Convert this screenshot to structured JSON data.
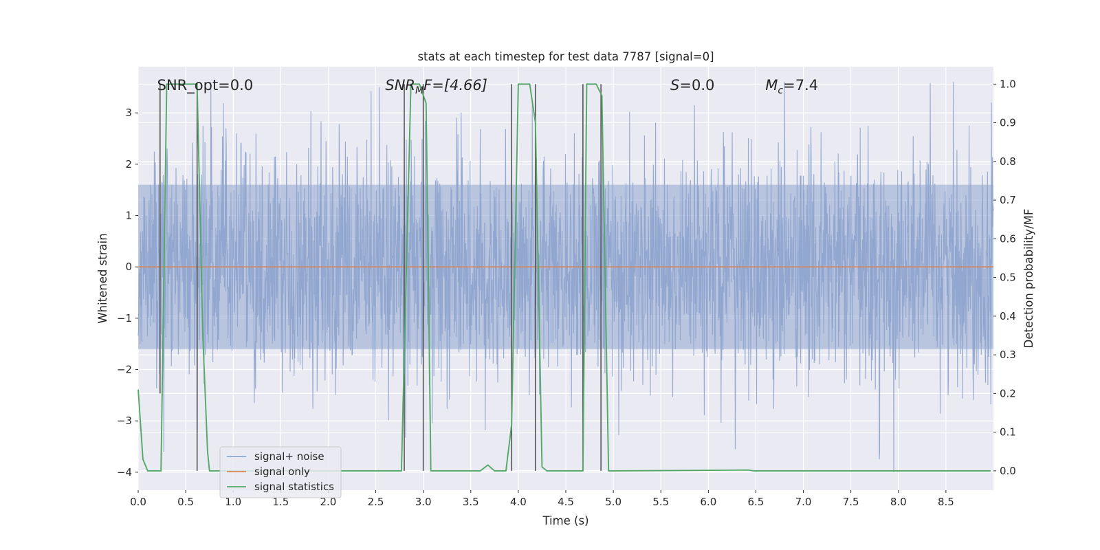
{
  "chart_data": {
    "type": "line",
    "title": "stats at each timestep for test data 7787 [signal=0]",
    "xlabel": "Time (s)",
    "ylabel": "Whitened strain",
    "ylabel_right": "Detection probability/MF",
    "xlim": [
      0,
      9
    ],
    "ylim": [
      -4.35,
      3.9
    ],
    "ylim_right": [
      -0.05,
      1.045
    ],
    "grid": true,
    "legend_position": "lower-left",
    "x_ticks": [
      "0.0",
      "0.5",
      "1.0",
      "1.5",
      "2.0",
      "2.5",
      "3.0",
      "3.5",
      "4.0",
      "4.5",
      "5.0",
      "5.5",
      "6.0",
      "6.5",
      "7.0",
      "7.5",
      "8.0",
      "8.5"
    ],
    "y_ticks": [
      "3",
      "2",
      "1",
      "0",
      "−1",
      "−2",
      "−3",
      "−4"
    ],
    "y_ticks_right": [
      "1.0",
      "0.9",
      "0.8",
      "0.7",
      "0.6",
      "0.5",
      "0.4",
      "0.3",
      "0.2",
      "0.1",
      "0.0"
    ],
    "annotations": {
      "snr_opt": {
        "prefix": "SNR_opt=",
        "value": "0.0",
        "x": 0.2,
        "y": 3.55
      },
      "snr_mf": {
        "main": "SNR",
        "sub": "M",
        "rest": "F=[4.66]",
        "x": 2.6,
        "y": 3.55
      },
      "s": {
        "main": "S",
        "rest": "=0.0",
        "x": 5.6,
        "y": 3.55
      },
      "mc": {
        "main": "M",
        "sub": "c",
        "rest": "=7.4",
        "x": 6.6,
        "y": 3.55
      }
    },
    "series": [
      {
        "name": "signal+ noise",
        "color": "#8fa5cf",
        "axis": "left",
        "description": "whitened strain noise band",
        "band_lower": -1.6,
        "band_upper": 1.6,
        "max_abs": 3.6,
        "events": [
          {
            "x": 7.8,
            "y": -3.75
          },
          {
            "x": 7.95,
            "y": -4.0
          },
          {
            "x": 0.27,
            "y": -3.6
          },
          {
            "x": 8.98,
            "y": 3.2
          },
          {
            "x": 2.54,
            "y": 3.5
          }
        ]
      },
      {
        "name": "signal only",
        "color": "#dd8452",
        "axis": "left",
        "x": [
          0,
          9
        ],
        "y": [
          0,
          0
        ]
      },
      {
        "name": "signal statistics",
        "color": "#55a868",
        "axis": "right",
        "x": [
          0,
          0.05,
          0.1,
          0.24,
          0.3,
          0.62,
          0.68,
          0.73,
          0.75,
          2.77,
          2.87,
          2.96,
          3.03,
          3.08,
          3.6,
          3.68,
          3.75,
          3.87,
          3.93,
          4.0,
          4.12,
          4.18,
          4.25,
          4.3,
          4.68,
          4.72,
          4.78,
          4.82,
          4.88,
          4.95,
          5.02,
          6.42,
          6.48,
          8.97
        ],
        "y": [
          0.21,
          0.03,
          0.0,
          0.0,
          1.0,
          1.0,
          0.35,
          0.05,
          0.0,
          0.0,
          1.0,
          1.0,
          0.95,
          0.0,
          0.0,
          0.015,
          0.0,
          0.0,
          0.12,
          1.0,
          1.0,
          0.9,
          0.01,
          0.0,
          0.0,
          1.0,
          1.0,
          1.0,
          0.97,
          0.0,
          0.0,
          0.002,
          0.0,
          0.0
        ]
      }
    ],
    "vertical_lines": [
      {
        "x": 0.23,
        "y_top": 1.0,
        "y_bottom": 0.2
      },
      {
        "x": 0.62,
        "y_top": 1.0,
        "y_bottom": 0.0
      },
      {
        "x": 2.8,
        "y_top": 1.0,
        "y_bottom": 0.0
      },
      {
        "x": 3.0,
        "y_top": 1.0,
        "y_bottom": 0.0
      },
      {
        "x": 3.93,
        "y_top": 1.0,
        "y_bottom": 0.0
      },
      {
        "x": 4.18,
        "y_top": 1.0,
        "y_bottom": 0.0
      },
      {
        "x": 4.68,
        "y_top": 1.0,
        "y_bottom": 0.0
      },
      {
        "x": 4.87,
        "y_top": 1.0,
        "y_bottom": 0.0
      }
    ]
  },
  "legend": {
    "items": [
      {
        "label": "signal+ noise",
        "color": "#8fa5cf"
      },
      {
        "label": "signal only",
        "color": "#dd8452"
      },
      {
        "label": "signal statistics",
        "color": "#55a868"
      }
    ]
  },
  "colors": {
    "plot_background": "#eaeaf2",
    "grid": "#ffffff",
    "text": "#262626",
    "vertical_line": "#555555"
  }
}
